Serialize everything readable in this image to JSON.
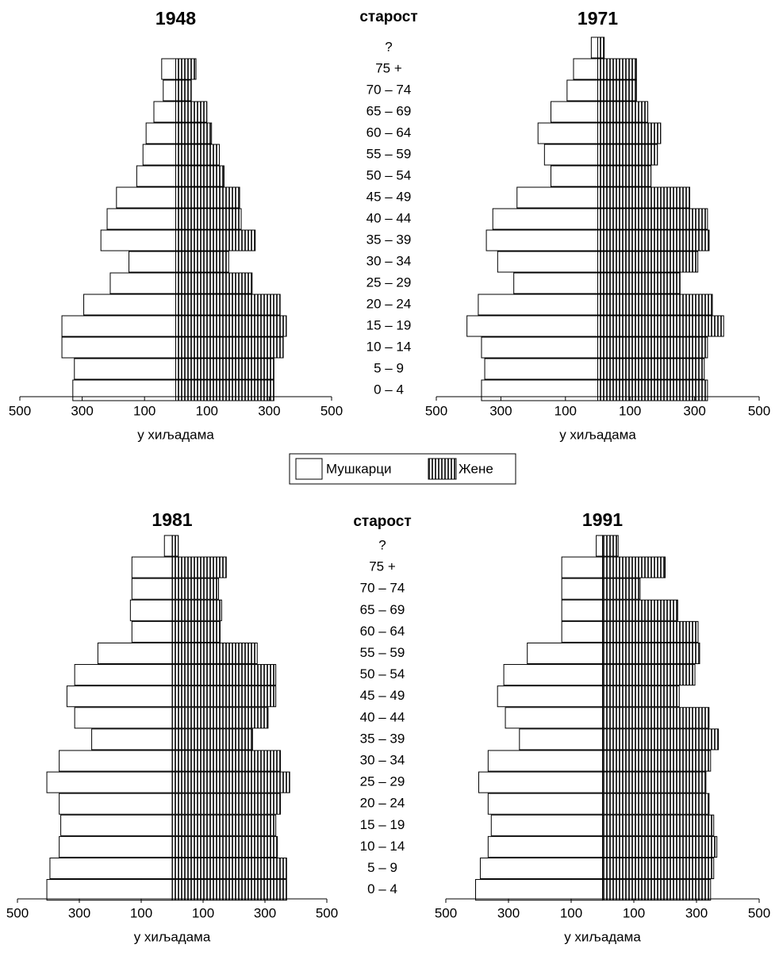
{
  "chart_data": [
    {
      "type": "pyramid",
      "title": "1948",
      "category_title": "старост",
      "categories": [
        "?",
        "75 +",
        "70 – 74",
        "65 – 69",
        "60 – 64",
        "55 – 59",
        "50 – 54",
        "45 – 49",
        "40 – 44",
        "35 – 39",
        "30 – 34",
        "25 – 29",
        "20 – 24",
        "15 – 19",
        "10 – 14",
        "5 – 9",
        "0 – 4"
      ],
      "xlabel": "у хиљадама",
      "xlim": [
        -500,
        500
      ],
      "xticks": [
        {
          "value": -500,
          "label": "500"
        },
        {
          "value": -300,
          "label": "300"
        },
        {
          "value": -100,
          "label": "100"
        },
        100,
        300,
        500
      ],
      "series": [
        {
          "name": "Мушкарци",
          "color": "#ffffff",
          "values": [
            null,
            -45,
            -40,
            -70,
            -95,
            -105,
            -125,
            -190,
            -220,
            -240,
            -150,
            -210,
            -295,
            -365,
            -365,
            -325,
            -330
          ]
        },
        {
          "name": "Жене",
          "color": "#333333",
          "hatch": "vertical",
          "values": [
            null,
            65,
            50,
            100,
            115,
            140,
            155,
            205,
            210,
            255,
            170,
            245,
            335,
            355,
            345,
            315,
            315
          ]
        }
      ]
    },
    {
      "type": "pyramid",
      "title": "1971",
      "xlabel": "у хиљадама",
      "xlim": [
        -500,
        500
      ],
      "xticks": [
        {
          "value": -500,
          "label": "500"
        },
        {
          "value": -300,
          "label": "300"
        },
        {
          "value": -100,
          "label": "100"
        },
        100,
        300,
        500
      ],
      "series": [
        {
          "values": [
            -20,
            -75,
            -95,
            -145,
            -185,
            -165,
            -145,
            -250,
            -325,
            -345,
            -310,
            -260,
            -370,
            -405,
            -360,
            -350,
            -360
          ]
        },
        {
          "values": [
            20,
            120,
            120,
            155,
            195,
            185,
            165,
            285,
            340,
            345,
            310,
            255,
            355,
            390,
            340,
            330,
            340
          ]
        }
      ]
    },
    {
      "type": "pyramid",
      "title": "1981",
      "category_title": "старост",
      "categories": [
        "?",
        "75 +",
        "70 – 74",
        "65 – 69",
        "60 – 64",
        "55 – 59",
        "50 – 54",
        "45 – 49",
        "40 – 44",
        "35 – 39",
        "30 – 34",
        "25 – 29",
        "20 – 24",
        "15 – 19",
        "10 – 14",
        "5 – 9",
        "0 – 4"
      ],
      "xlabel": "у хиљадама",
      "xlim": [
        -500,
        500
      ],
      "xticks": [
        {
          "value": -500,
          "label": "500"
        },
        {
          "value": -300,
          "label": "300"
        },
        {
          "value": -100,
          "label": "100"
        },
        100,
        300,
        500
      ],
      "series": [
        {
          "values": [
            -25,
            -130,
            -130,
            -135,
            -130,
            -240,
            -315,
            -340,
            -315,
            -260,
            -365,
            -405,
            -365,
            -360,
            -365,
            -395,
            -405
          ]
        },
        {
          "values": [
            20,
            175,
            150,
            160,
            155,
            275,
            335,
            335,
            310,
            260,
            350,
            380,
            350,
            335,
            340,
            370,
            370
          ]
        }
      ]
    },
    {
      "type": "pyramid",
      "title": "1991",
      "xlabel": "у хиљадама",
      "xlim": [
        -500,
        500
      ],
      "xticks": [
        {
          "value": -500,
          "label": "500"
        },
        {
          "value": -300,
          "label": "300"
        },
        {
          "value": -100,
          "label": "100"
        },
        100,
        300,
        500
      ],
      "series": [
        {
          "values": [
            -20,
            -130,
            -130,
            -130,
            -130,
            -240,
            -315,
            -335,
            -310,
            -265,
            -365,
            -395,
            -365,
            -355,
            -365,
            -390,
            -405
          ]
        },
        {
          "values": [
            50,
            200,
            120,
            240,
            305,
            310,
            295,
            245,
            340,
            370,
            345,
            330,
            340,
            355,
            365,
            355,
            345
          ]
        }
      ]
    }
  ]
}
